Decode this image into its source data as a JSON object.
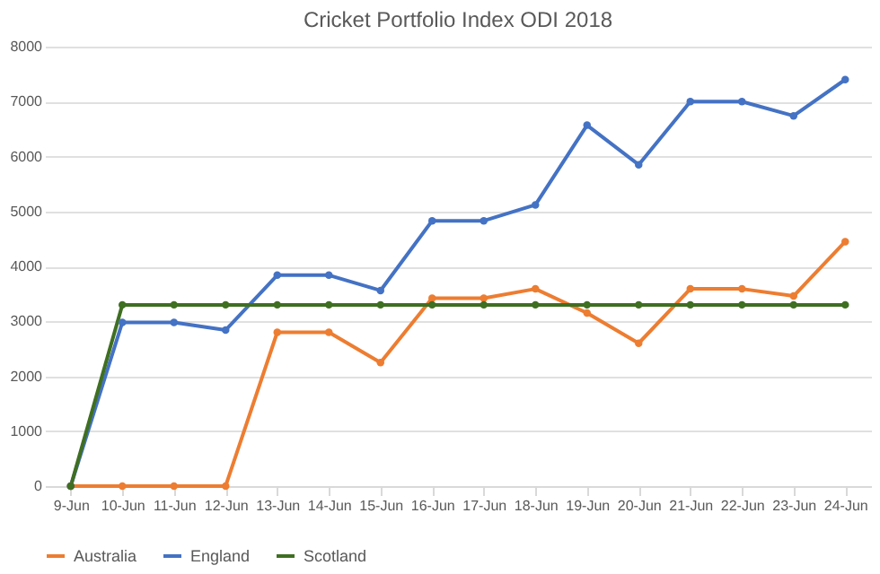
{
  "chart_data": {
    "type": "line",
    "title": "Cricket Portfolio Index ODI 2018",
    "categories": [
      "9-Jun",
      "10-Jun",
      "11-Jun",
      "12-Jun",
      "13-Jun",
      "14-Jun",
      "15-Jun",
      "16-Jun",
      "17-Jun",
      "18-Jun",
      "19-Jun",
      "20-Jun",
      "21-Jun",
      "22-Jun",
      "23-Jun",
      "24-Jun"
    ],
    "series": [
      {
        "name": "Australia",
        "color": "#ed7d31",
        "values": [
          0,
          0,
          0,
          0,
          2800,
          2800,
          2250,
          3420,
          3420,
          3590,
          3150,
          2600,
          3590,
          3590,
          3460,
          4450
        ]
      },
      {
        "name": "England",
        "color": "#4472c4",
        "values": [
          0,
          2980,
          2980,
          2840,
          3840,
          3840,
          3560,
          4830,
          4830,
          5120,
          6570,
          5850,
          7000,
          7000,
          6740,
          7400
        ]
      },
      {
        "name": "Scotland",
        "color": "#3f6f21",
        "values": [
          0,
          3300,
          3300,
          3300,
          3300,
          3300,
          3300,
          3300,
          3300,
          3300,
          3300,
          3300,
          3300,
          3300,
          3300,
          3300
        ]
      }
    ],
    "ylim": [
      0,
      8000
    ],
    "yticks": [
      0,
      1000,
      2000,
      3000,
      4000,
      5000,
      6000,
      7000,
      8000
    ],
    "grid": "y",
    "legend": "bottom",
    "marker": "circle",
    "line_style": "solid"
  }
}
